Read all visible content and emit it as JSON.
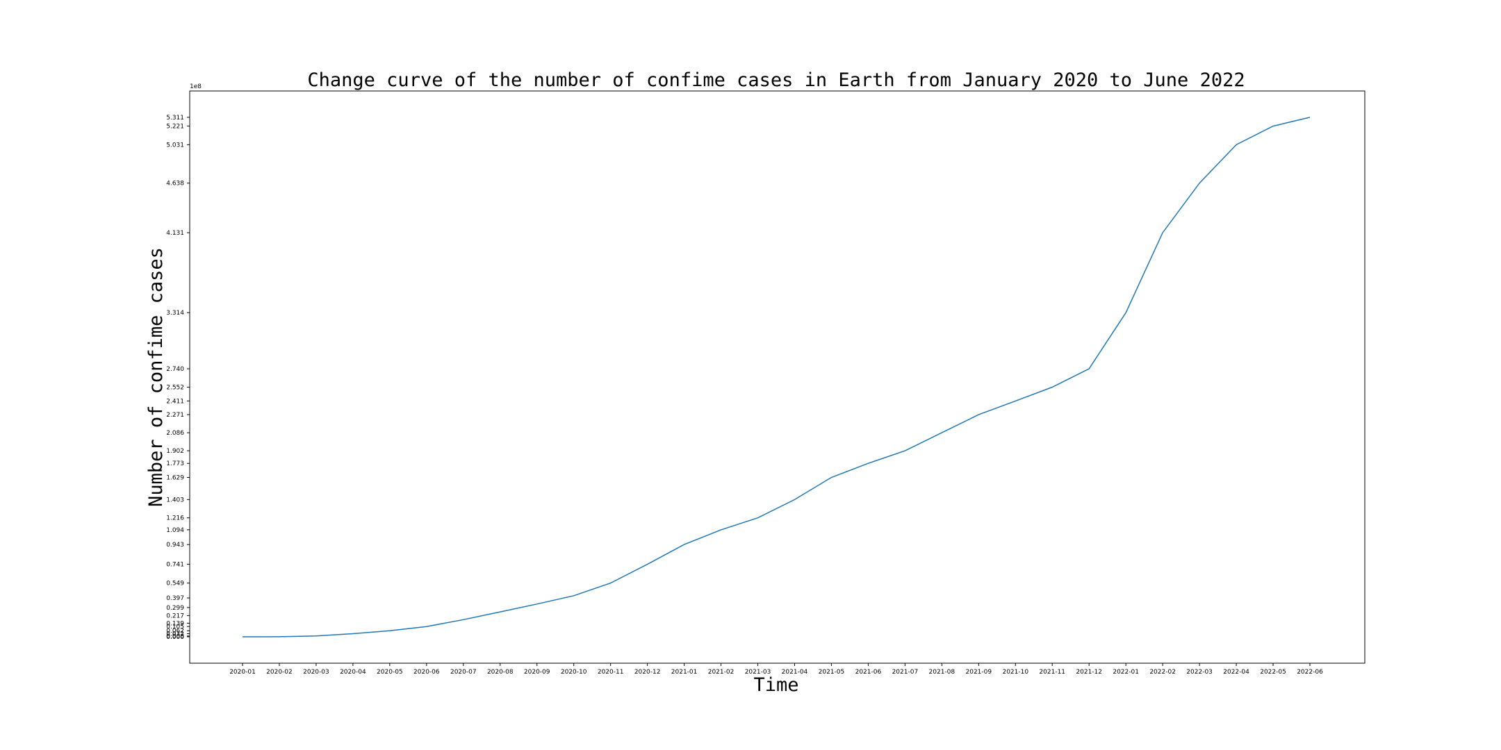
{
  "chart_data": {
    "type": "line",
    "title": "Change curve of the number of confime cases in Earth from January 2020 to June 2022",
    "xlabel": "Time",
    "ylabel": "Number of confime cases",
    "y_offset_label": "1e8",
    "grid": false,
    "legend": "none",
    "line_color": "#1f77b4",
    "x": [
      "2020-01",
      "2020-02",
      "2020-03",
      "2020-04",
      "2020-05",
      "2020-06",
      "2020-07",
      "2020-08",
      "2020-09",
      "2020-10",
      "2020-11",
      "2020-12",
      "2021-01",
      "2021-02",
      "2021-03",
      "2021-04",
      "2021-05",
      "2021-06",
      "2021-07",
      "2021-08",
      "2021-09",
      "2021-10",
      "2021-11",
      "2021-12",
      "2022-01",
      "2022-02",
      "2022-03",
      "2022-04",
      "2022-05",
      "2022-06"
    ],
    "values": [
      0.0001,
      0.0008,
      0.0086,
      0.032,
      0.062,
      0.105,
      0.175,
      0.255,
      0.335,
      0.42,
      0.549,
      0.741,
      0.943,
      1.094,
      1.216,
      1.403,
      1.629,
      1.773,
      1.902,
      2.086,
      2.271,
      2.411,
      2.552,
      2.74,
      3.314,
      4.131,
      4.638,
      5.031,
      5.221,
      5.311
    ],
    "y_ticks": [
      0.0,
      0.008,
      0.032,
      0.062,
      0.105,
      0.139,
      0.217,
      0.299,
      0.397,
      0.549,
      0.741,
      0.943,
      1.094,
      1.216,
      1.403,
      1.629,
      1.773,
      1.902,
      2.086,
      2.271,
      2.411,
      2.552,
      2.74,
      3.314,
      4.131,
      4.638,
      5.031,
      5.221,
      5.311
    ],
    "y_tick_labels": [
      "0.000",
      "0.008",
      "0.032",
      "0.062",
      "0.105",
      "0.139",
      "0.217",
      "0.299",
      "0.397",
      "0.549",
      "0.741",
      "0.943",
      "1.094",
      "1.216",
      "1.403",
      "1.629",
      "1.773",
      "1.902",
      "2.086",
      "2.271",
      "2.411",
      "2.552",
      "2.740",
      "3.314",
      "4.131",
      "4.638",
      "5.031",
      "5.221",
      "5.311"
    ],
    "ylim": [
      -0.27,
      5.58
    ]
  }
}
